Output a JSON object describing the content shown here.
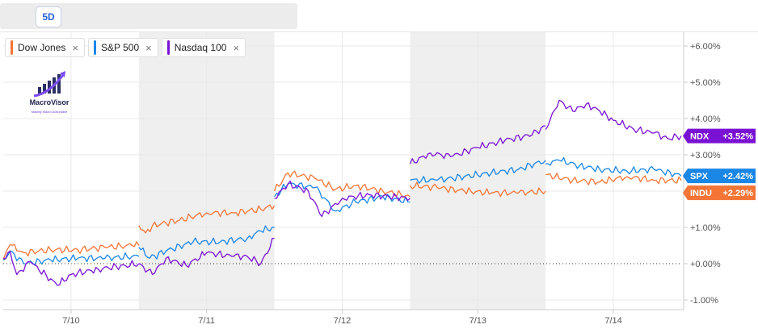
{
  "toolbar": {
    "range_label": "5D"
  },
  "legend": [
    {
      "label": "Dow Jones",
      "color": "#f47536",
      "close": "×"
    },
    {
      "label": "S&P 500",
      "color": "#1a86e6",
      "close": "×"
    },
    {
      "label": "Nasdaq 100",
      "color": "#7a12d4",
      "close": "×"
    }
  ],
  "logo": {
    "name": "MacroVisor",
    "tagline": "Making Macro Actionable"
  },
  "chart_data": {
    "type": "line",
    "x_labels": [
      "7/10",
      "7/11",
      "7/12",
      "7/13",
      "7/14"
    ],
    "y_ticks": [
      "+6.00%",
      "+5.00%",
      "+4.00%",
      "+3.00%",
      "+2.00%",
      "+1.00%",
      "+0.00%",
      "-1.00%"
    ],
    "ylim": [
      -1.0,
      6.0
    ],
    "baseline": 0,
    "shaded_sessions": [
      "7/11",
      "7/13"
    ],
    "series": [
      {
        "name": "Dow Jones",
        "ticker": "INDU",
        "color": "#f47536",
        "last_label": "+2.29%",
        "points": [
          [
            0.0,
            0.1
          ],
          [
            0.05,
            0.52
          ],
          [
            0.15,
            0.3
          ],
          [
            0.35,
            0.38
          ],
          [
            0.55,
            0.38
          ],
          [
            0.75,
            0.45
          ],
          [
            0.95,
            0.5
          ],
          [
            1.0,
            0.5
          ],
          [
            1.0,
            1.05
          ],
          [
            1.05,
            0.85
          ],
          [
            1.1,
            1.05
          ],
          [
            1.3,
            1.2
          ],
          [
            1.5,
            1.4
          ],
          [
            1.7,
            1.4
          ],
          [
            1.9,
            1.5
          ],
          [
            2.0,
            1.6
          ],
          [
            2.0,
            2.0
          ],
          [
            2.1,
            2.5
          ],
          [
            2.3,
            2.35
          ],
          [
            2.45,
            2.05
          ],
          [
            2.6,
            2.15
          ],
          [
            2.8,
            2.0
          ],
          [
            3.0,
            1.85
          ],
          [
            3.0,
            2.15
          ],
          [
            3.2,
            2.1
          ],
          [
            3.4,
            2.0
          ],
          [
            3.6,
            1.95
          ],
          [
            3.8,
            1.95
          ],
          [
            4.0,
            2.0
          ],
          [
            4.0,
            2.45
          ],
          [
            4.2,
            2.3
          ],
          [
            4.4,
            2.25
          ],
          [
            4.6,
            2.4
          ],
          [
            4.8,
            2.3
          ],
          [
            5.0,
            2.29
          ]
        ]
      },
      {
        "name": "S&P 500",
        "ticker": "SPX",
        "color": "#1a86e6",
        "last_label": "+2.42%",
        "points": [
          [
            0.0,
            0.1
          ],
          [
            0.05,
            0.35
          ],
          [
            0.15,
            0.0
          ],
          [
            0.35,
            0.1
          ],
          [
            0.55,
            0.15
          ],
          [
            0.75,
            0.15
          ],
          [
            0.95,
            0.2
          ],
          [
            1.0,
            0.2
          ],
          [
            1.0,
            0.45
          ],
          [
            1.08,
            0.15
          ],
          [
            1.2,
            0.35
          ],
          [
            1.4,
            0.6
          ],
          [
            1.6,
            0.6
          ],
          [
            1.8,
            0.7
          ],
          [
            1.9,
            0.9
          ],
          [
            2.0,
            1.0
          ],
          [
            2.0,
            1.85
          ],
          [
            2.1,
            2.2
          ],
          [
            2.3,
            2.1
          ],
          [
            2.45,
            1.45
          ],
          [
            2.6,
            1.7
          ],
          [
            2.8,
            1.85
          ],
          [
            3.0,
            1.7
          ],
          [
            3.0,
            2.3
          ],
          [
            3.2,
            2.3
          ],
          [
            3.4,
            2.4
          ],
          [
            3.6,
            2.5
          ],
          [
            3.8,
            2.6
          ],
          [
            4.0,
            2.85
          ],
          [
            4.0,
            2.75
          ],
          [
            4.1,
            2.85
          ],
          [
            4.25,
            2.7
          ],
          [
            4.4,
            2.6
          ],
          [
            4.6,
            2.55
          ],
          [
            4.8,
            2.6
          ],
          [
            5.0,
            2.42
          ]
        ]
      },
      {
        "name": "Nasdaq 100",
        "ticker": "NDX",
        "color": "#7a12d4",
        "last_label": "+3.52%",
        "points": [
          [
            0.0,
            0.15
          ],
          [
            0.05,
            0.35
          ],
          [
            0.1,
            -0.3
          ],
          [
            0.2,
            0.05
          ],
          [
            0.4,
            -0.6
          ],
          [
            0.5,
            -0.3
          ],
          [
            0.7,
            -0.15
          ],
          [
            0.9,
            -0.05
          ],
          [
            1.0,
            0.0
          ],
          [
            1.0,
            0.0
          ],
          [
            1.1,
            -0.3
          ],
          [
            1.2,
            0.15
          ],
          [
            1.35,
            -0.05
          ],
          [
            1.5,
            0.3
          ],
          [
            1.7,
            0.2
          ],
          [
            1.8,
            0.2
          ],
          [
            1.9,
            0.0
          ],
          [
            2.0,
            0.7
          ],
          [
            2.0,
            1.8
          ],
          [
            2.1,
            2.2
          ],
          [
            2.25,
            2.0
          ],
          [
            2.35,
            1.3
          ],
          [
            2.5,
            1.8
          ],
          [
            2.7,
            1.9
          ],
          [
            3.0,
            1.8
          ],
          [
            3.0,
            2.75
          ],
          [
            3.15,
            3.05
          ],
          [
            3.3,
            2.95
          ],
          [
            3.5,
            3.2
          ],
          [
            3.7,
            3.4
          ],
          [
            3.9,
            3.55
          ],
          [
            4.0,
            3.8
          ],
          [
            4.0,
            3.7
          ],
          [
            4.05,
            4.15
          ],
          [
            4.1,
            4.5
          ],
          [
            4.2,
            4.2
          ],
          [
            4.3,
            4.4
          ],
          [
            4.4,
            4.2
          ],
          [
            4.5,
            3.95
          ],
          [
            4.65,
            3.7
          ],
          [
            4.8,
            3.6
          ],
          [
            4.9,
            3.45
          ],
          [
            5.0,
            3.52
          ]
        ]
      }
    ]
  }
}
